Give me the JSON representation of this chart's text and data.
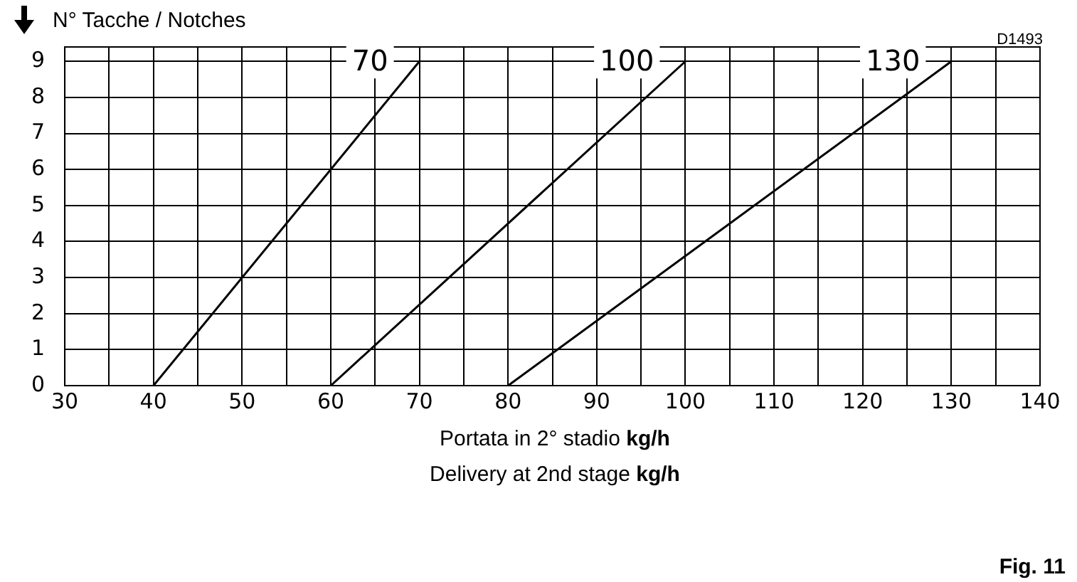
{
  "chart_data": {
    "type": "line",
    "title": "N° Tacche / Notches",
    "xlabel": "Portata in 2° stadio kg/h\nDelivery at 2nd stage kg/h",
    "annotations": [
      "D1493",
      "Fig. 11"
    ],
    "series": [
      {
        "name": "70",
        "color": "#000000",
        "x": [
          40,
          70
        ],
        "values": [
          0,
          9
        ]
      },
      {
        "name": "100",
        "color": "#000000",
        "x": [
          60,
          100
        ],
        "values": [
          0,
          9
        ]
      },
      {
        "name": "130",
        "color": "#000000",
        "x": [
          80,
          130
        ],
        "values": [
          0,
          9
        ]
      }
    ],
    "xlim": [
      30,
      140
    ],
    "xticks": [
      30,
      {
        "value": 35,
        "label": null
      },
      40,
      {
        "value": 45,
        "label": null
      },
      50,
      {
        "value": 55,
        "label": null
      },
      60,
      {
        "value": 65,
        "label": null
      },
      70,
      {
        "value": 75,
        "label": null
      },
      80,
      {
        "value": 85,
        "label": null
      },
      90,
      {
        "value": 95,
        "label": null
      },
      100,
      {
        "value": 105,
        "label": null
      },
      110,
      {
        "value": 115,
        "label": null
      },
      120,
      {
        "value": 125,
        "label": null
      },
      130,
      {
        "value": 135,
        "label": null
      },
      140
    ],
    "ylim": [
      0,
      9.4
    ],
    "yticks": [
      0,
      1,
      2,
      3,
      4,
      5,
      6,
      7,
      8,
      9
    ],
    "grid": true,
    "legend": false,
    "marker": "none",
    "line_style": "solid"
  }
}
